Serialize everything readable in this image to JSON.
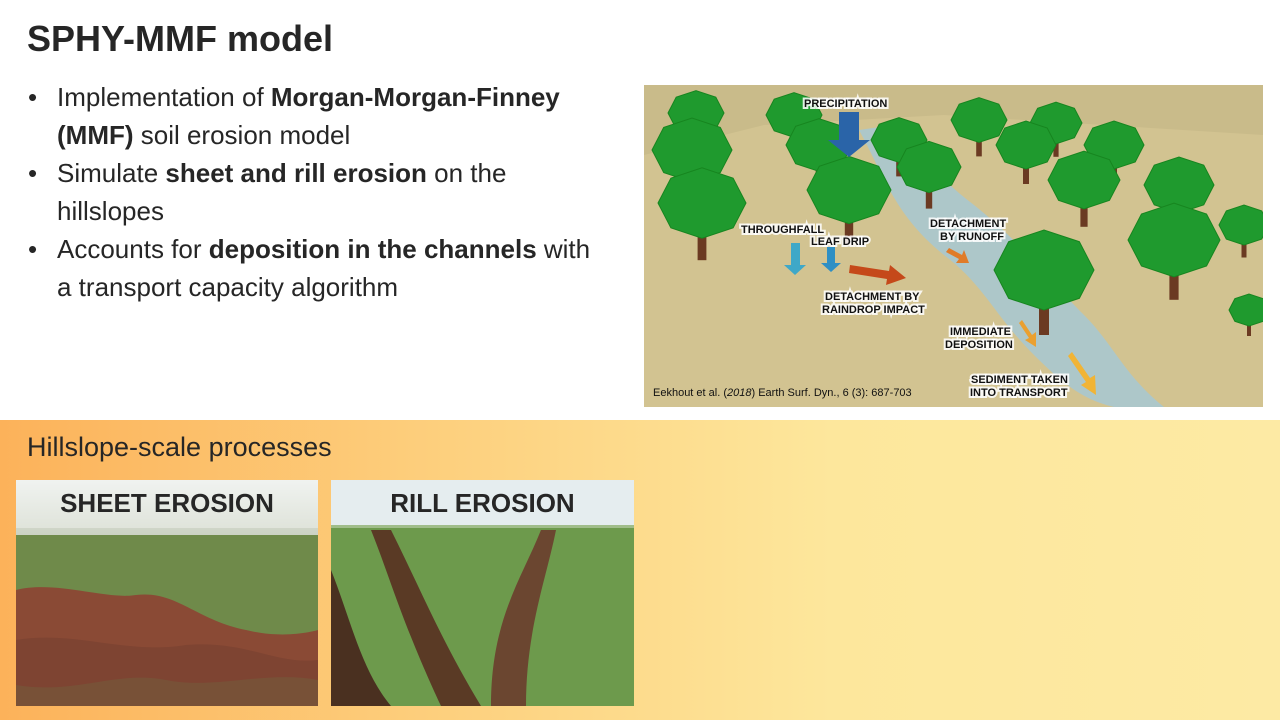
{
  "title": "SPHY-MMF model",
  "bullets": [
    [
      {
        "text": "Implementation of "
      },
      {
        "text": "Morgan-Morgan-Finney (MMF)",
        "bold": true
      },
      {
        "text": " soil erosion model"
      }
    ],
    [
      {
        "text": "Simulate "
      },
      {
        "text": "sheet and rill erosion",
        "bold": true
      },
      {
        "text": " on the hillslopes"
      }
    ],
    [
      {
        "text": "Accounts for "
      },
      {
        "text": "deposition in the channels",
        "bold": true
      },
      {
        "text": " with a transport capacity algorithm"
      }
    ]
  ],
  "diagram": {
    "labels": {
      "precipitation": [
        "PRECIPITATION"
      ],
      "throughfall": [
        "THROUGHFALL"
      ],
      "leaf_drip": [
        "LEAF DRIP"
      ],
      "detachment_runoff": [
        "DETACHMENT",
        "BY RUNOFF"
      ],
      "detachment_raindrop": [
        "DETACHMENT BY",
        "RAINDROP IMPACT"
      ],
      "immediate_deposition": [
        "IMMEDIATE",
        "DEPOSITION"
      ],
      "sediment_transport": [
        "SEDIMENT TAKEN",
        "INTO TRANSPORT"
      ]
    },
    "citation": [
      {
        "text": "Eekhout et al. ("
      },
      {
        "text": "2018",
        "italic": true
      },
      {
        "text": ") Earth Surf. Dyn., 6 (3): 687-703"
      }
    ]
  },
  "section": {
    "title": "Hillslope-scale processes",
    "photos": [
      {
        "caption": "SHEET EROSION"
      },
      {
        "caption": "RILL EROSION"
      }
    ]
  }
}
